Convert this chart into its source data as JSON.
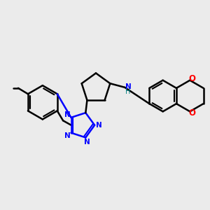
{
  "background_color": "#EBEBEB",
  "bond_color": "#000000",
  "nitrogen_color": "#0000FF",
  "oxygen_color": "#FF0000",
  "nh_color": "#008080",
  "line_width": 1.8,
  "xlim": [
    -3.0,
    3.4
  ],
  "ylim": [
    -2.8,
    2.8
  ],
  "figsize": [
    3.0,
    3.0
  ],
  "dpi": 100
}
